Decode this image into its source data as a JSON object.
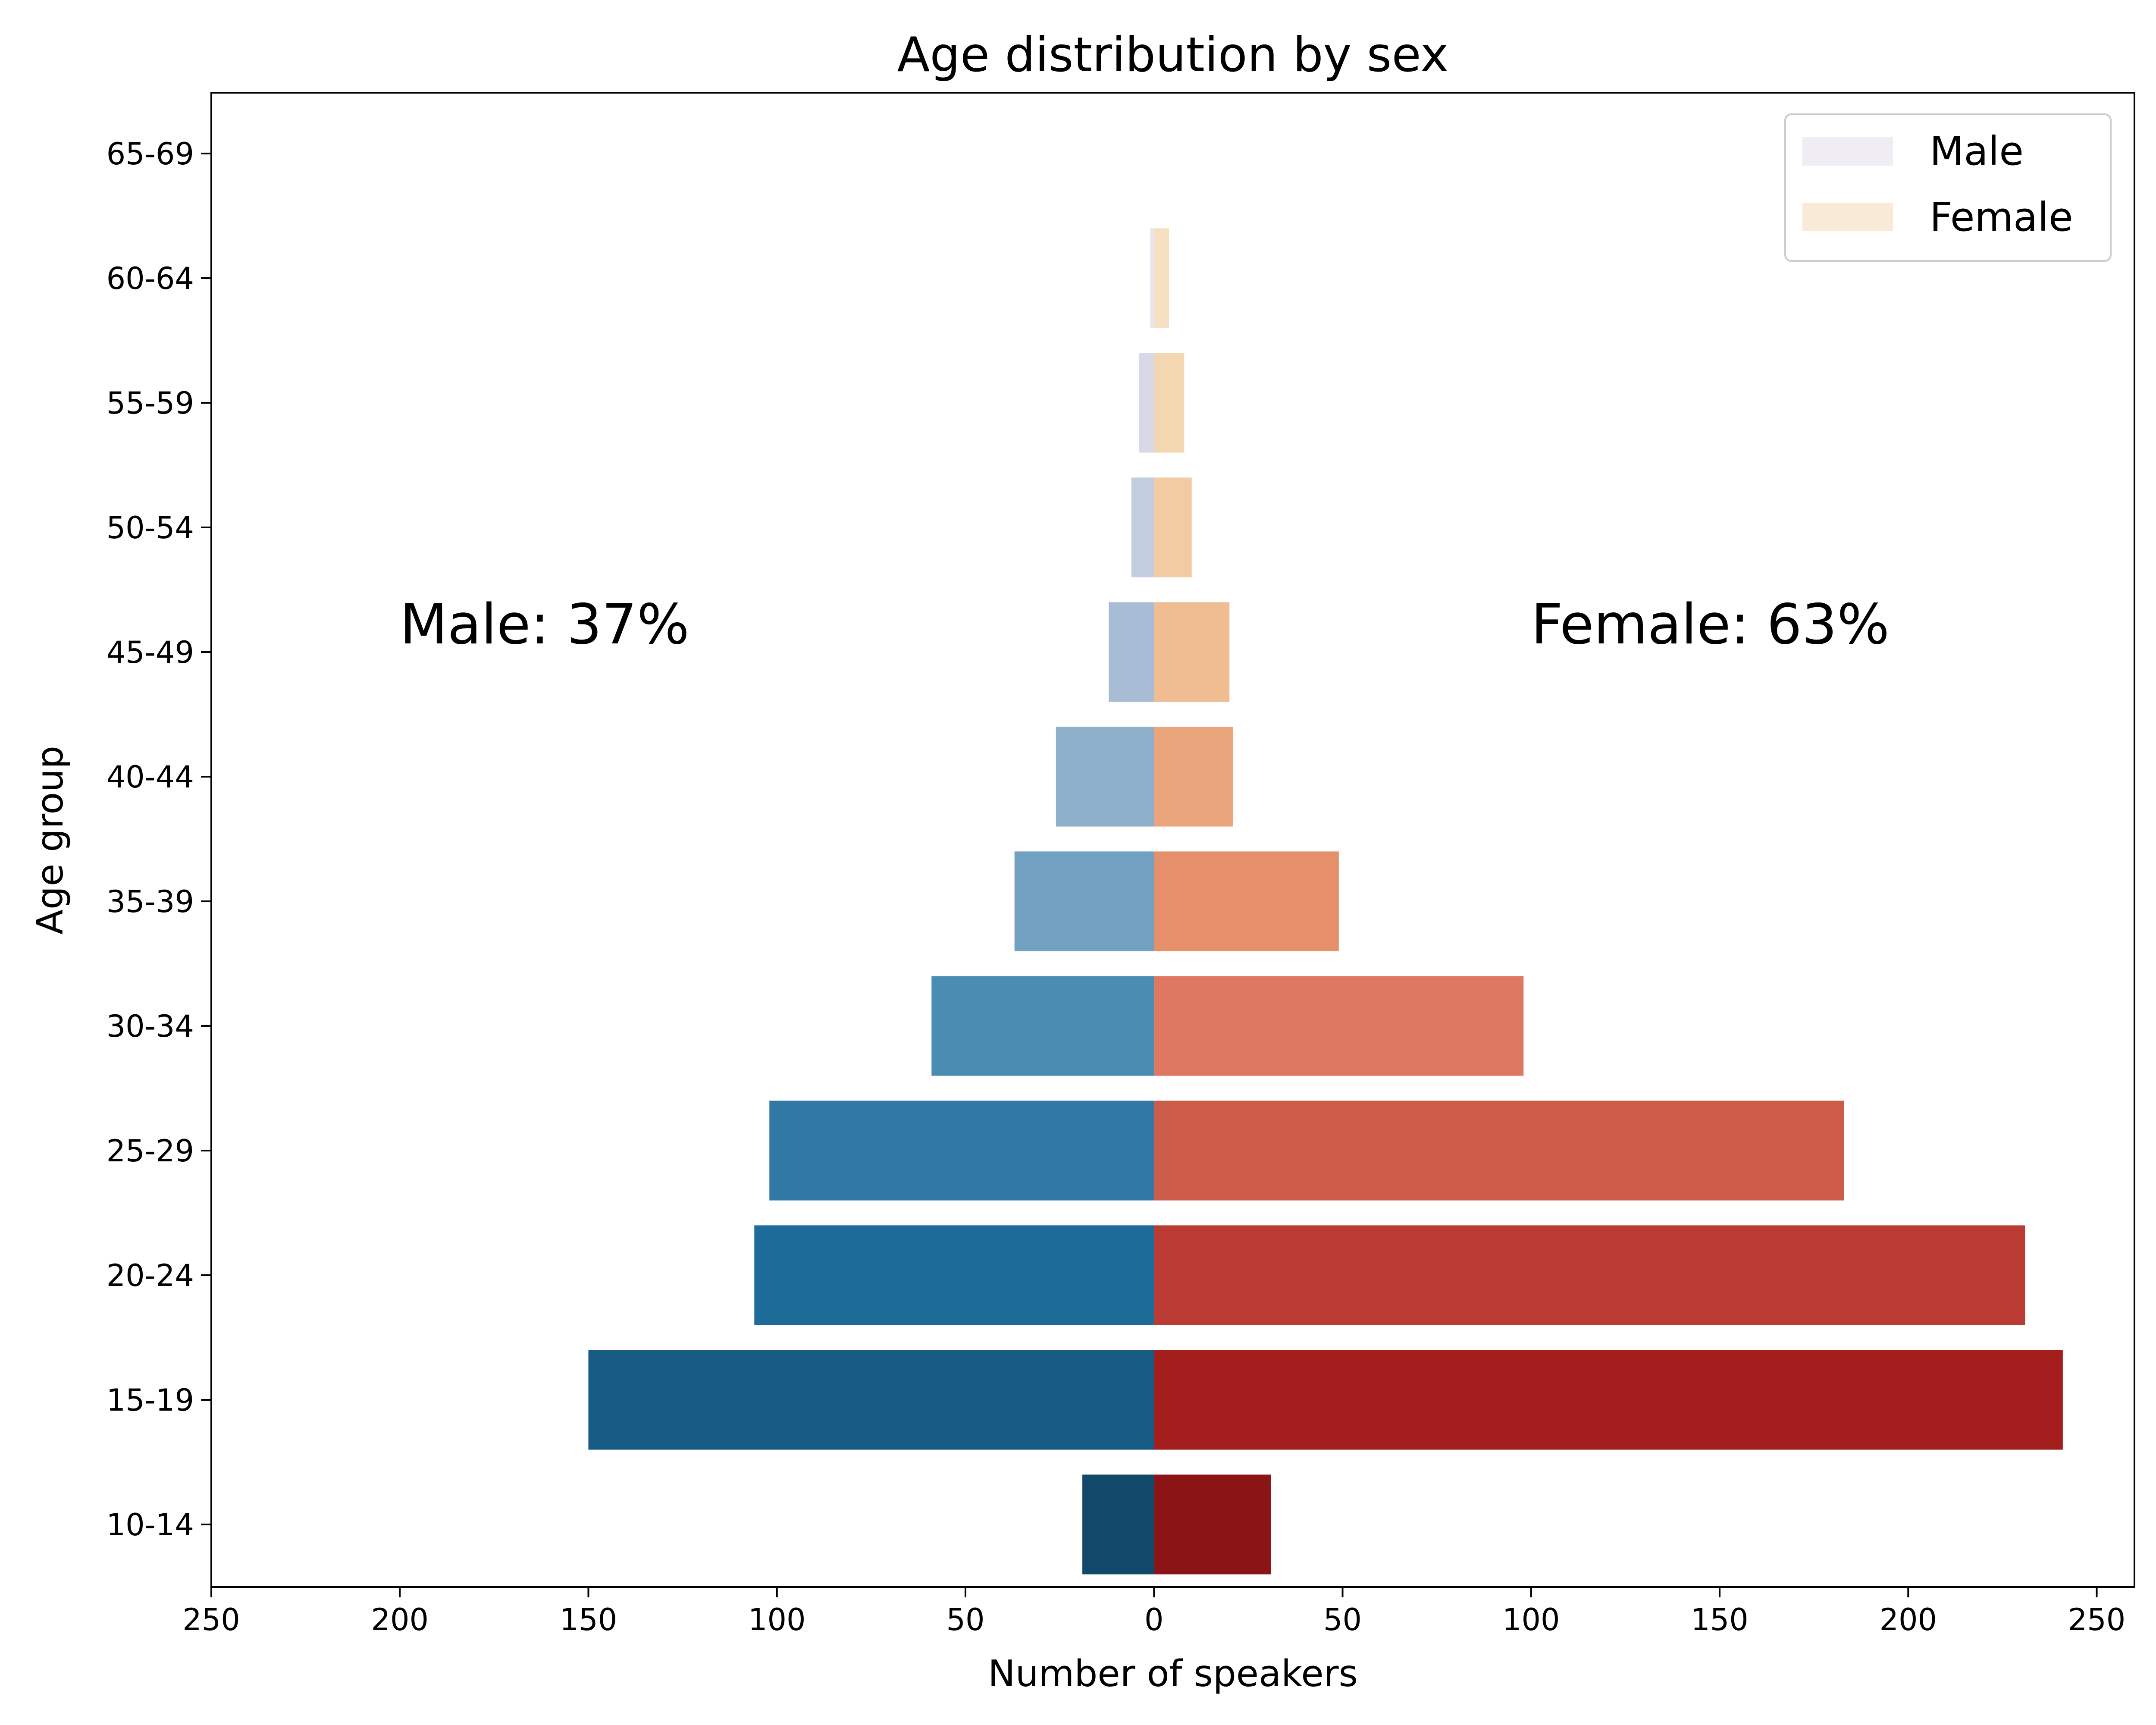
{
  "chart_data": {
    "type": "bar",
    "orientation": "horizontal",
    "layout": "population-pyramid",
    "title": "Age distribution by sex",
    "xlabel": "Number of speakers",
    "ylabel": "Age group",
    "xlim": [
      -250,
      260
    ],
    "xticks": [
      -250,
      -200,
      -150,
      -100,
      -50,
      0,
      50,
      100,
      150,
      200,
      250
    ],
    "xtick_labels": [
      "250",
      "200",
      "150",
      "100",
      "50",
      "0",
      "50",
      "100",
      "150",
      "200",
      "250"
    ],
    "categories": [
      "10-14",
      "15-19",
      "20-24",
      "25-29",
      "30-34",
      "35-39",
      "40-44",
      "45-49",
      "50-54",
      "55-59",
      "60-64",
      "65-69"
    ],
    "series": [
      {
        "name": "Male",
        "values": [
          19,
          150,
          106,
          102,
          59,
          37,
          26,
          12,
          6,
          4,
          1,
          0
        ],
        "colors": [
          "#12496b",
          "#175b85",
          "#1c6b99",
          "#3179a4",
          "#4b8db2",
          "#72a0c0",
          "#8eafca",
          "#a9bcd5",
          "#c2cddf",
          "#d7d8e8",
          "#e8e4f0",
          "#f0ecf4"
        ],
        "legend_color": "#f0ecf4"
      },
      {
        "name": "Female",
        "values": [
          31,
          241,
          231,
          183,
          98,
          49,
          21,
          20,
          10,
          8,
          4,
          0
        ],
        "colors": [
          "#8b1516",
          "#a51e1e",
          "#b93b33",
          "#cc5b4a",
          "#de7861",
          "#e68f6b",
          "#eba57c",
          "#efbd91",
          "#f2cba3",
          "#f3d7b0",
          "#f6e0c1",
          "#f8ead6"
        ],
        "legend_color": "#f8ead6"
      }
    ],
    "annotations": [
      {
        "text": "Male: 37%",
        "x": -200,
        "y": "45-49",
        "color": "#00007f"
      },
      {
        "text": "Female: 63%",
        "x": 100,
        "y": "45-49",
        "color": "#8b0000"
      }
    ],
    "legend": {
      "position": "top-right"
    },
    "grid": false
  }
}
